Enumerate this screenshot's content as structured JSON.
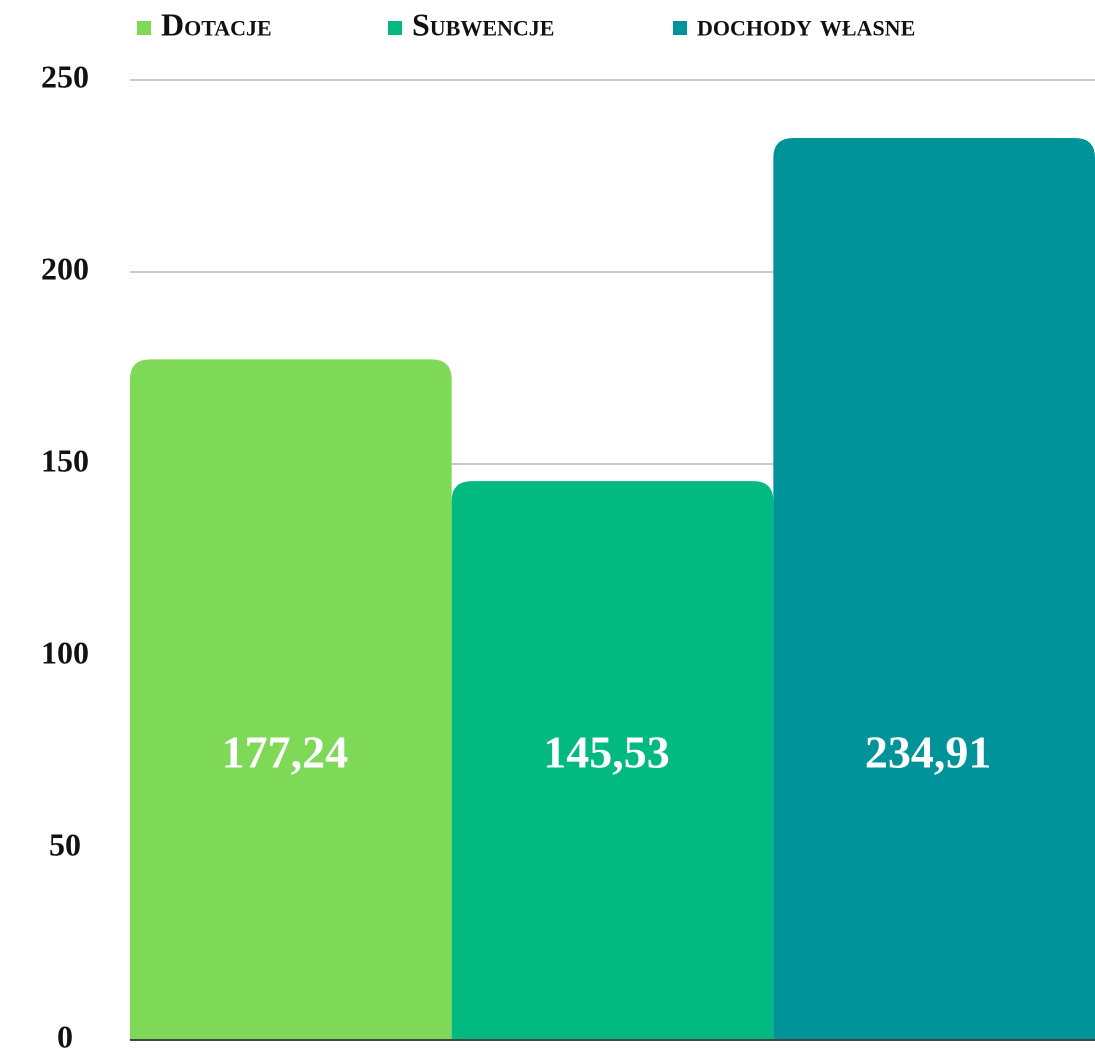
{
  "chart_data": {
    "type": "bar",
    "categories": [
      null
    ],
    "series": [
      {
        "name": "Dotacje",
        "color": "#7ed957",
        "values": [
          177.24
        ],
        "value_labels": [
          "177,24"
        ]
      },
      {
        "name": "Subwencje",
        "color": "#02b97f",
        "values": [
          145.53
        ],
        "value_labels": [
          "145,53"
        ]
      },
      {
        "name": "dochody własne",
        "color": "#00949a",
        "values": [
          234.91
        ],
        "value_labels": [
          "234,91"
        ]
      }
    ],
    "ylim": [
      0,
      250
    ],
    "yticks": [
      0,
      50,
      100,
      150,
      200,
      250
    ],
    "grid": true,
    "legend": "top"
  }
}
